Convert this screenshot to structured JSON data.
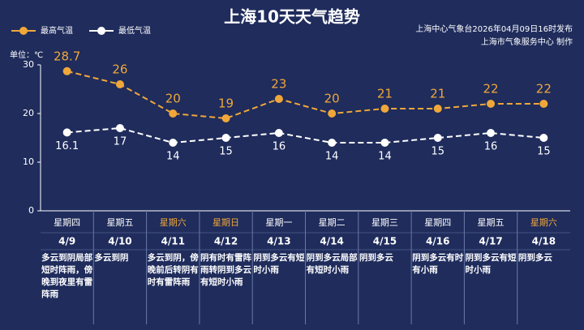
{
  "chart_data": {
    "type": "line",
    "title": "上海10天天气趋势",
    "source": [
      "上海中心气象台2026年04月09日16时发布",
      "上海市气象服务中心 制作"
    ],
    "y_label": "单位：℃",
    "categories": [
      "4/9",
      "4/10",
      "4/11",
      "4/12",
      "4/13",
      "4/14",
      "4/15",
      "4/16",
      "4/17",
      "4/18"
    ],
    "weekdays": [
      "星期四",
      "星期五",
      "星期六",
      "星期日",
      "星期一",
      "星期二",
      "星期三",
      "星期四",
      "星期五",
      "星期六"
    ],
    "weekday_colors": [
      "#ffffff",
      "#ffffff",
      "#f0a73a",
      "#f0a73a",
      "#ffffff",
      "#ffffff",
      "#ffffff",
      "#ffffff",
      "#ffffff",
      "#f0a73a"
    ],
    "descriptions": [
      "多云到阴局部短时阵雨，傍晚到夜里有雷阵雨",
      "多云到阴",
      "多云到阴，傍晚前后转阴有时有雷阵雨",
      "阴有时有雷阵雨转阴到多云有短时小雨",
      "阴到多云有短时小雨",
      "阴到多云局部有短时小雨",
      "阴到多云",
      "阴到多云有时有小雨",
      "阴到多云有短时小雨",
      "阴到多云"
    ],
    "series": [
      {
        "name": "最高气温",
        "color": "#f0a73a",
        "values": [
          28.7,
          26,
          20,
          19,
          23,
          20,
          21,
          21,
          22,
          22
        ]
      },
      {
        "name": "最低气温",
        "color": "#ffffff",
        "values": [
          16.1,
          17,
          14,
          15,
          16,
          14,
          14,
          15,
          16,
          15
        ]
      }
    ],
    "ylim": [
      0,
      30
    ],
    "yticks": [
      0,
      10,
      20,
      30
    ],
    "legend": "top-left"
  }
}
